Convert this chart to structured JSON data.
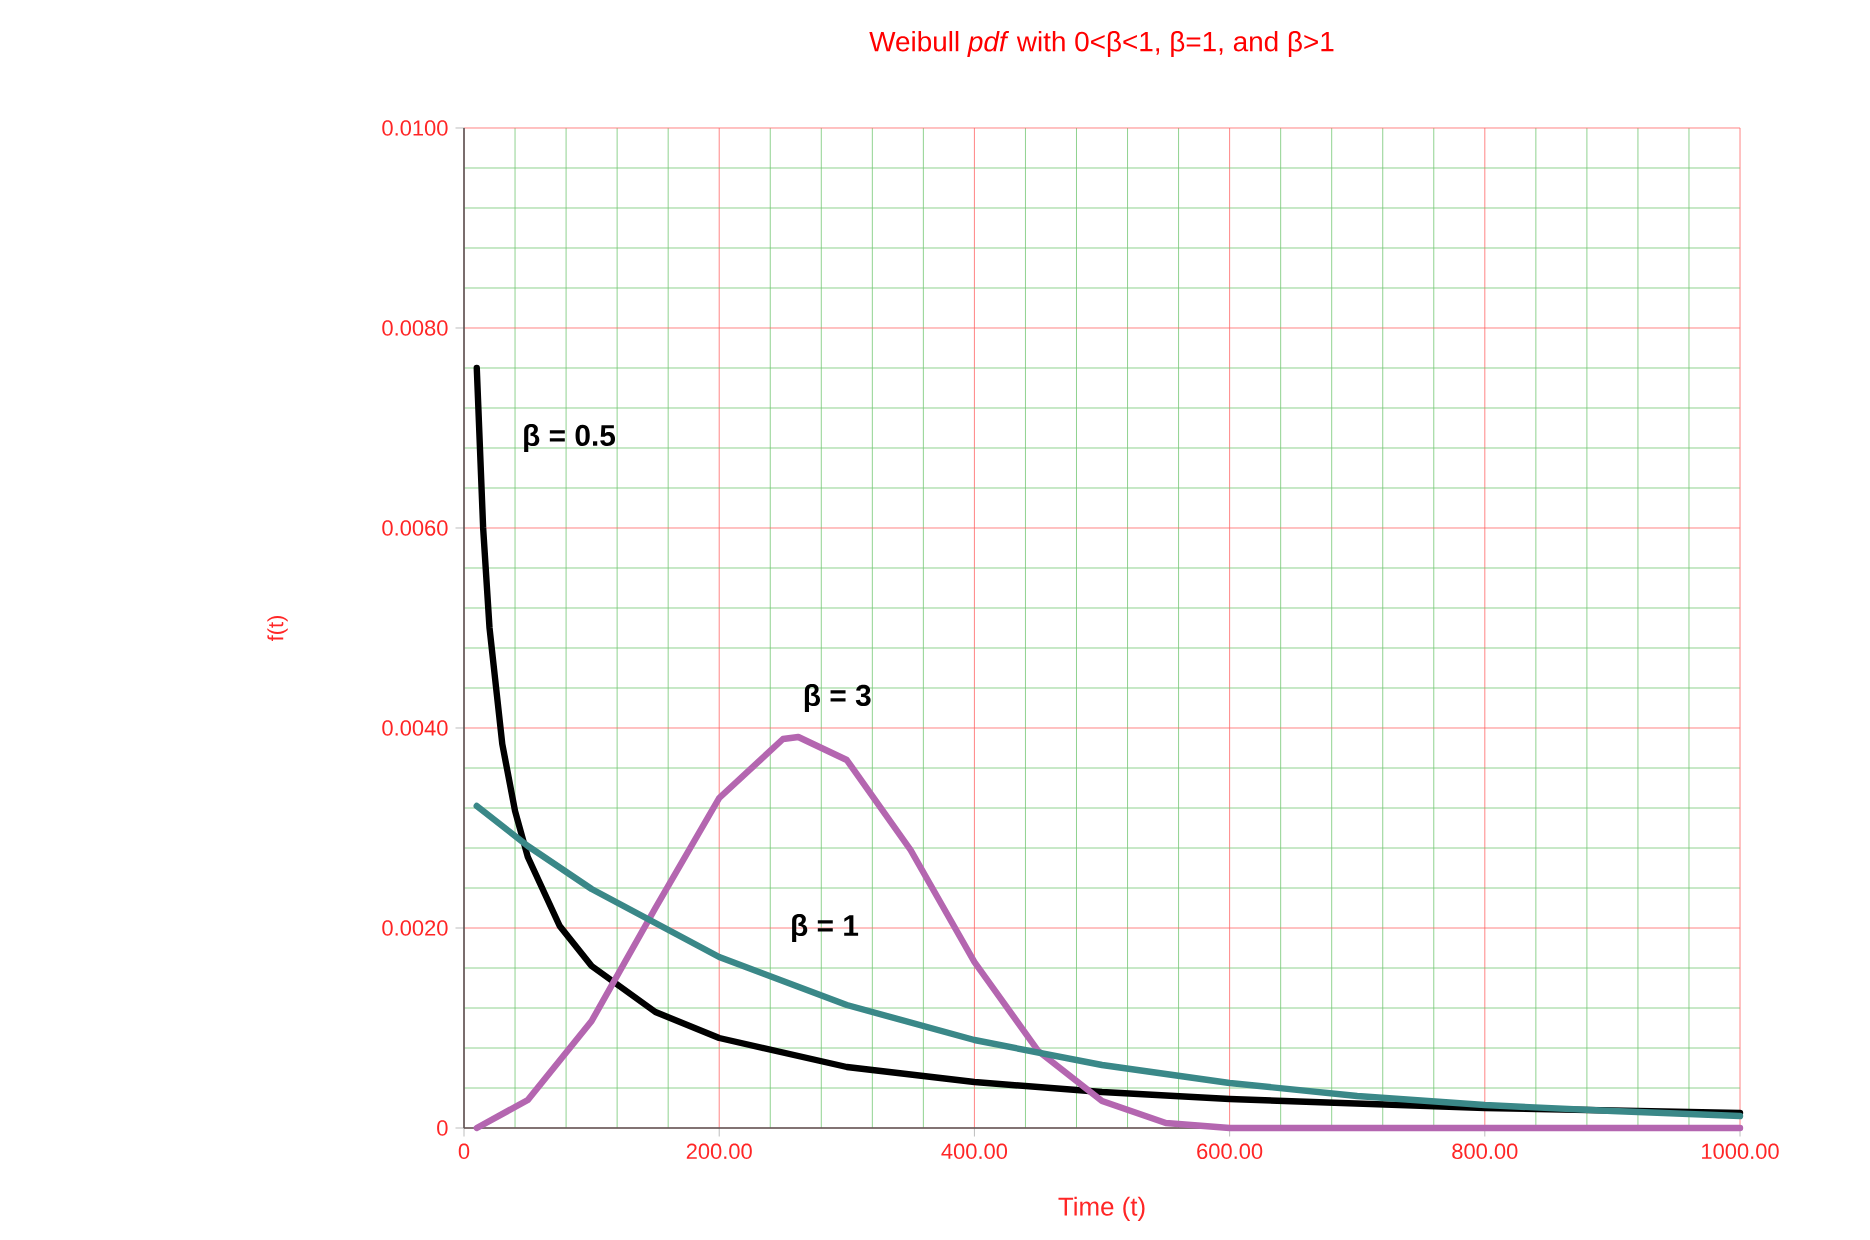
{
  "chart_data": {
    "type": "line",
    "title": "Weibull *pdf* with 0<β<1, β=1, and β>1",
    "xlabel": "Time (t)",
    "ylabel": "f(t)",
    "xlim": [
      0,
      1000
    ],
    "ylim": [
      0,
      0.01
    ],
    "xticks": [
      0,
      {
        "value": 40,
        "label": null
      },
      {
        "value": 80,
        "label": null
      },
      {
        "value": 120,
        "label": null
      },
      {
        "value": 160,
        "label": null
      },
      {
        "value": 200,
        "label": "200.00"
      },
      {
        "value": 240,
        "label": null
      },
      {
        "value": 280,
        "label": null
      },
      {
        "value": 320,
        "label": null
      },
      {
        "value": 360,
        "label": null
      },
      {
        "value": 400,
        "label": "400.00"
      },
      {
        "value": 440,
        "label": null
      },
      {
        "value": 480,
        "label": null
      },
      {
        "value": 520,
        "label": null
      },
      {
        "value": 560,
        "label": null
      },
      {
        "value": 600,
        "label": "600.00"
      },
      {
        "value": 640,
        "label": null
      },
      {
        "value": 680,
        "label": null
      },
      {
        "value": 720,
        "label": null
      },
      {
        "value": 760,
        "label": null
      },
      {
        "value": 800,
        "label": "800.00"
      },
      {
        "value": 840,
        "label": null
      },
      {
        "value": 880,
        "label": null
      },
      {
        "value": 920,
        "label": null
      },
      {
        "value": 960,
        "label": null
      },
      {
        "value": 1000,
        "label": "1000.00"
      }
    ],
    "yticks": [
      0,
      {
        "value": 0.0004,
        "label": null
      },
      {
        "value": 0.0008,
        "label": null
      },
      {
        "value": 0.0012,
        "label": null
      },
      {
        "value": 0.0016,
        "label": null
      },
      {
        "value": 0.002,
        "label": "0.0020"
      },
      {
        "value": 0.0024,
        "label": null
      },
      {
        "value": 0.0028,
        "label": null
      },
      {
        "value": 0.0032,
        "label": null
      },
      {
        "value": 0.0036,
        "label": null
      },
      {
        "value": 0.004,
        "label": "0.0040"
      },
      {
        "value": 0.0044,
        "label": null
      },
      {
        "value": 0.0048,
        "label": null
      },
      {
        "value": 0.0052,
        "label": null
      },
      {
        "value": 0.0056,
        "label": null
      },
      {
        "value": 0.006,
        "label": "0.0060"
      },
      {
        "value": 0.0064,
        "label": null
      },
      {
        "value": 0.0068,
        "label": null
      },
      {
        "value": 0.0072,
        "label": null
      },
      {
        "value": 0.0076,
        "label": null
      },
      {
        "value": 0.008,
        "label": "0.0080"
      },
      {
        "value": 0.0084,
        "label": null
      },
      {
        "value": 0.0088,
        "label": null
      },
      {
        "value": 0.0092,
        "label": null
      },
      {
        "value": 0.0096,
        "label": null
      },
      {
        "value": 0.01,
        "label": "0.0100"
      }
    ],
    "grid": true,
    "legend": false,
    "marker": "none",
    "line_style": "solid",
    "series": [
      {
        "name": "β = 0.5",
        "color": "#000000",
        "x": [
          10,
          15,
          20,
          30,
          40,
          50,
          75,
          100,
          150,
          200,
          300,
          400,
          500,
          600,
          800,
          1000
        ],
        "values": [
          0.0076,
          0.006,
          0.005,
          0.00384,
          0.00317,
          0.00271,
          0.00202,
          0.00162,
          0.00116,
          0.0009,
          0.00061,
          0.00046,
          0.00036,
          0.00029,
          0.0002,
          0.00015
        ]
      },
      {
        "name": "β = 3",
        "color": "#b466b0",
        "x": [
          10,
          50,
          100,
          150,
          200,
          250,
          262,
          300,
          350,
          400,
          450,
          500,
          550,
          600,
          700,
          800,
          1000
        ],
        "values": [
          0,
          0.00028,
          0.00107,
          0.0022,
          0.0033,
          0.00389,
          0.00391,
          0.00368,
          0.00278,
          0.00166,
          0.00077,
          0.00027,
          5e-05,
          0,
          0,
          0,
          0
        ]
      },
      {
        "name": "β = 1",
        "color": "#3a8888",
        "x": [
          10,
          50,
          100,
          200,
          300,
          400,
          500,
          600,
          700,
          800,
          900,
          1000
        ],
        "values": [
          0.00322,
          0.00282,
          0.00239,
          0.00171,
          0.00123,
          0.00088,
          0.00063,
          0.00045,
          0.00032,
          0.00023,
          0.00017,
          0.00012
        ]
      }
    ]
  }
}
